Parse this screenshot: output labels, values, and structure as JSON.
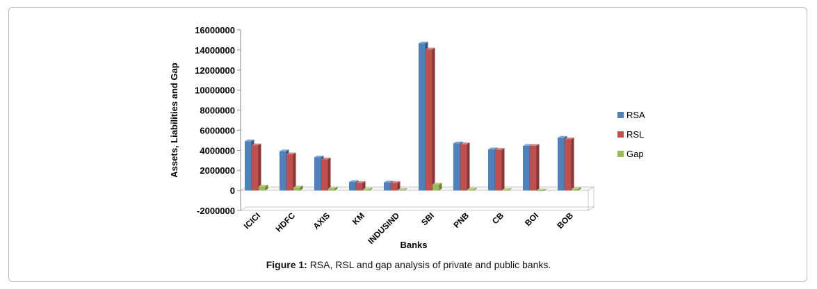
{
  "chart_data": {
    "type": "bar",
    "categories": [
      "ICICI",
      "HDFC",
      "AXIS",
      "KM",
      "INDUSIND",
      "SBI",
      "PNB",
      "CB",
      "BOI",
      "BOB"
    ],
    "series": [
      {
        "name": "RSA",
        "values": [
          4900000,
          3900000,
          3300000,
          850000,
          800000,
          14650000,
          4700000,
          4100000,
          4450000,
          5250000
        ]
      },
      {
        "name": "RSL",
        "values": [
          4500000,
          3600000,
          3100000,
          750000,
          750000,
          14050000,
          4600000,
          4050000,
          4450000,
          5100000
        ]
      },
      {
        "name": "Gap",
        "values": [
          400000,
          300000,
          200000,
          100000,
          50000,
          600000,
          100000,
          50000,
          0,
          150000
        ]
      }
    ],
    "ylim": [
      -2000000,
      16000000
    ],
    "yticks": [
      "16000000",
      "14000000",
      "12000000",
      "10000000",
      "8000000",
      "6000000",
      "4000000",
      "2000000",
      "0",
      "-2000000"
    ],
    "xlabel": "Banks",
    "ylabel": "Assets, Liabilities and Gap",
    "legend_position": "right",
    "colors": {
      "RSA": "#4f81bd",
      "RSL": "#c0504d",
      "Gap": "#9bbb59"
    }
  },
  "caption": {
    "label": "Figure 1:",
    "text": " RSA, RSL and gap analysis of private and public banks."
  }
}
